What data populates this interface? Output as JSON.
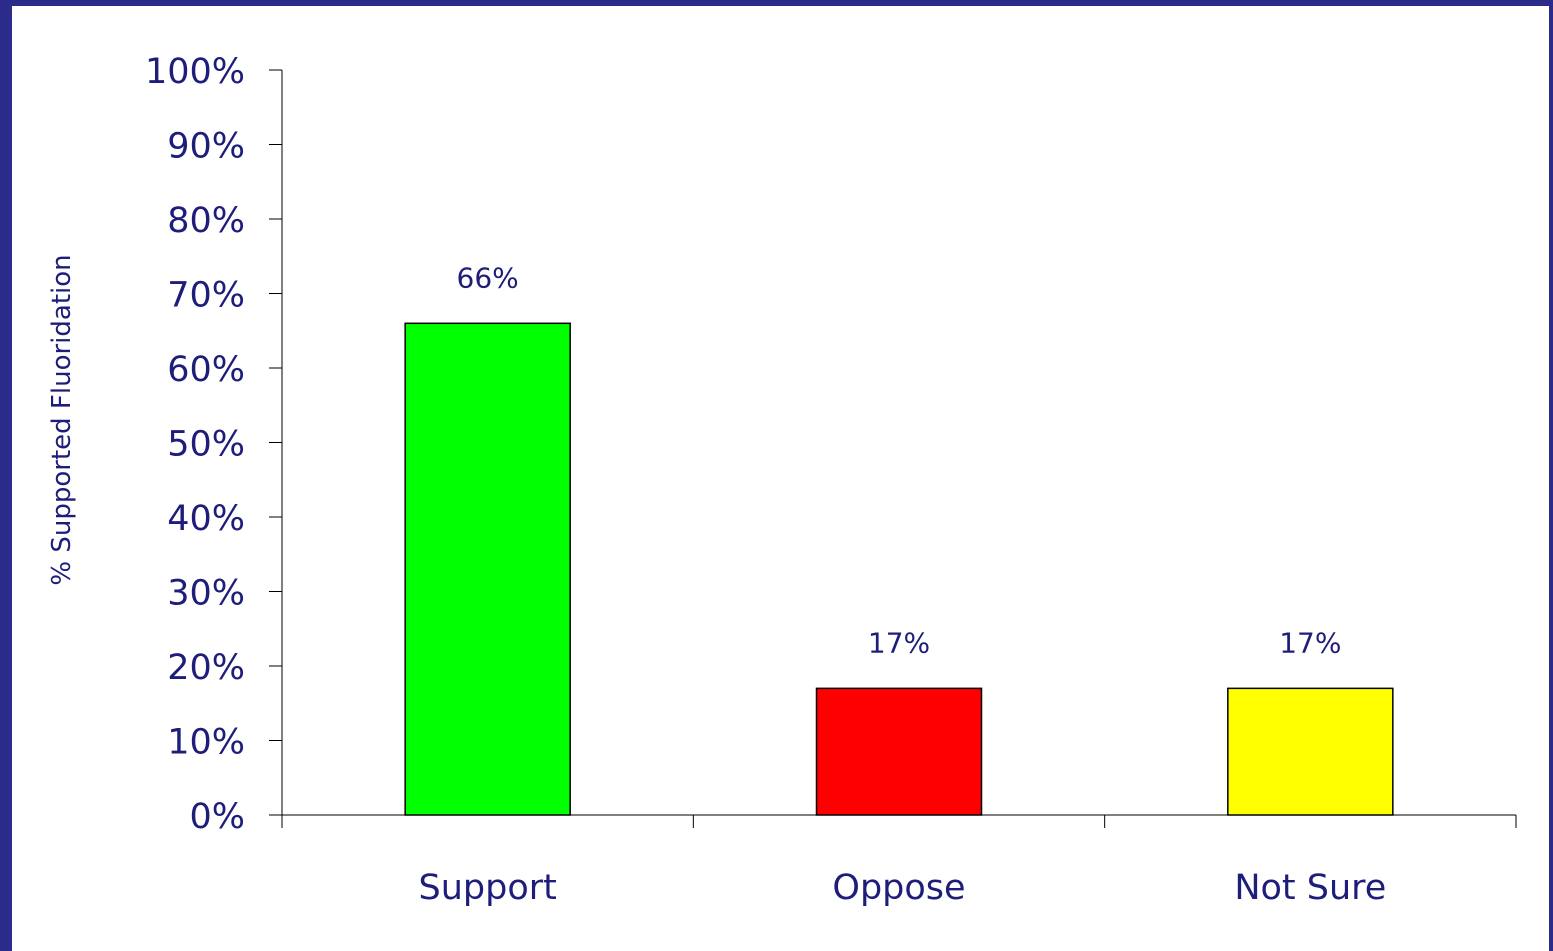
{
  "chart_data": {
    "type": "bar",
    "categories": [
      "Support",
      "Oppose",
      "Not Sure"
    ],
    "values": [
      66,
      17,
      17
    ],
    "data_labels": [
      "66%",
      "17%",
      "17%"
    ],
    "colors": [
      "#00FF00",
      "#FF0000",
      "#FFFF00"
    ],
    "title": "",
    "xlabel": "",
    "ylabel": "% Supported Fluoridation",
    "ylim": [
      0,
      100
    ],
    "yticks": [
      0,
      10,
      20,
      30,
      40,
      50,
      60,
      70,
      80,
      90,
      100
    ],
    "ytick_labels": [
      "0%",
      "10%",
      "20%",
      "30%",
      "40%",
      "50%",
      "60%",
      "70%",
      "80%",
      "90%",
      "100%"
    ],
    "grid": false,
    "legend": "none",
    "frame_color": "#2B2B8C",
    "text_color": "#1E1E7A"
  }
}
